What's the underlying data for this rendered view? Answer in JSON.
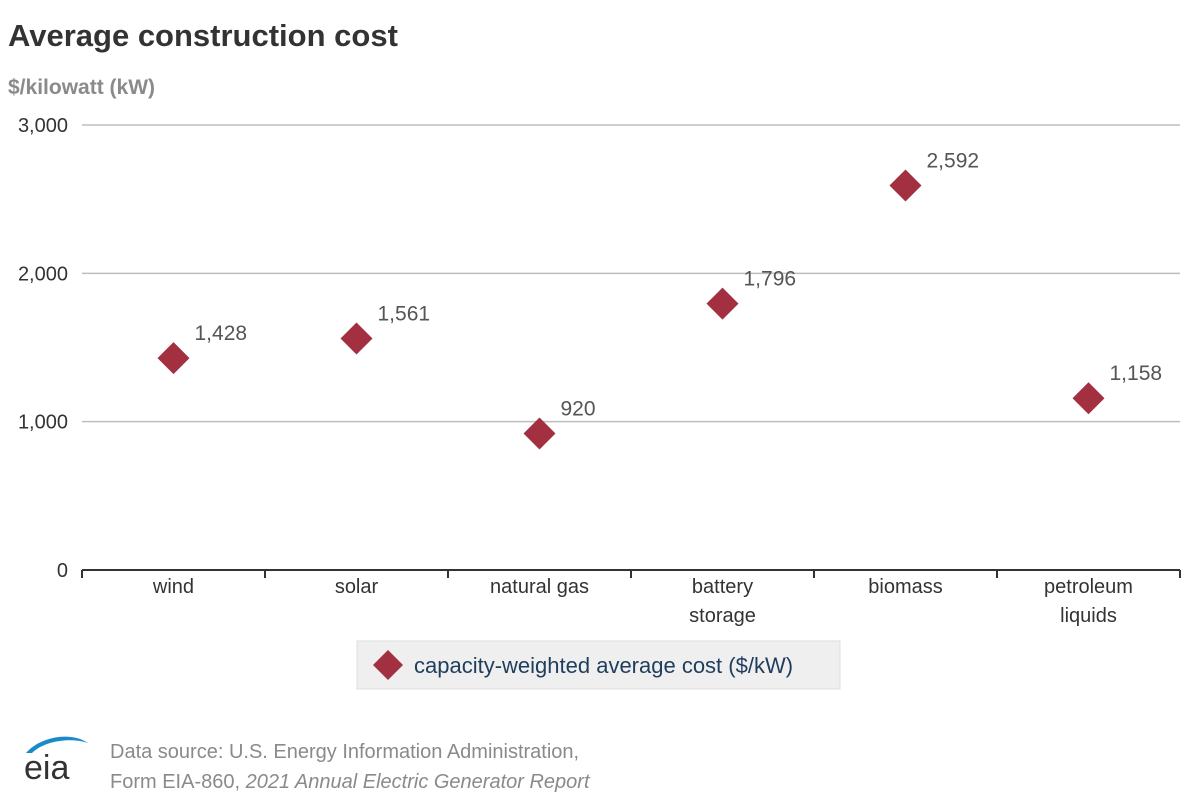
{
  "chart_data": {
    "type": "scatter",
    "title": "Average construction cost",
    "ylabel": "$/kilowatt (kW)",
    "categories": [
      "wind",
      "solar",
      "natural gas",
      "battery storage",
      "biomass",
      "petroleum liquids"
    ],
    "category_lines": [
      [
        "wind"
      ],
      [
        "solar"
      ],
      [
        "natural gas"
      ],
      [
        "battery",
        "storage"
      ],
      [
        "biomass"
      ],
      [
        "petroleum",
        "liquids"
      ]
    ],
    "series": [
      {
        "name": "capacity-weighted average cost ($/kW)",
        "values": [
          1428,
          1561,
          920,
          1796,
          2592,
          1158
        ],
        "labels": [
          "1,428",
          "1,561",
          "920",
          "1,796",
          "2,592",
          "1,158"
        ],
        "color": "#a33040",
        "marker": "diamond"
      }
    ],
    "ylim": [
      0,
      3000
    ],
    "yticks": [
      0,
      1000,
      2000,
      3000
    ],
    "ytick_labels": [
      "0",
      "1,000",
      "2,000",
      "3,000"
    ],
    "grid": true,
    "legend": "bottom-center"
  },
  "footer": {
    "logo_text": "eia",
    "source_line1": "Data source: U.S. Energy Information Administration,",
    "source_line2_prefix": "Form EIA-860, ",
    "source_line2_italic": "2021 Annual Electric Generator Report"
  },
  "colors": {
    "marker": "#a33040",
    "legend_text": "#1f3d5c",
    "grid": "#bdbdbd",
    "axis": "#333333",
    "logo_blue": "#1a8bc8"
  }
}
